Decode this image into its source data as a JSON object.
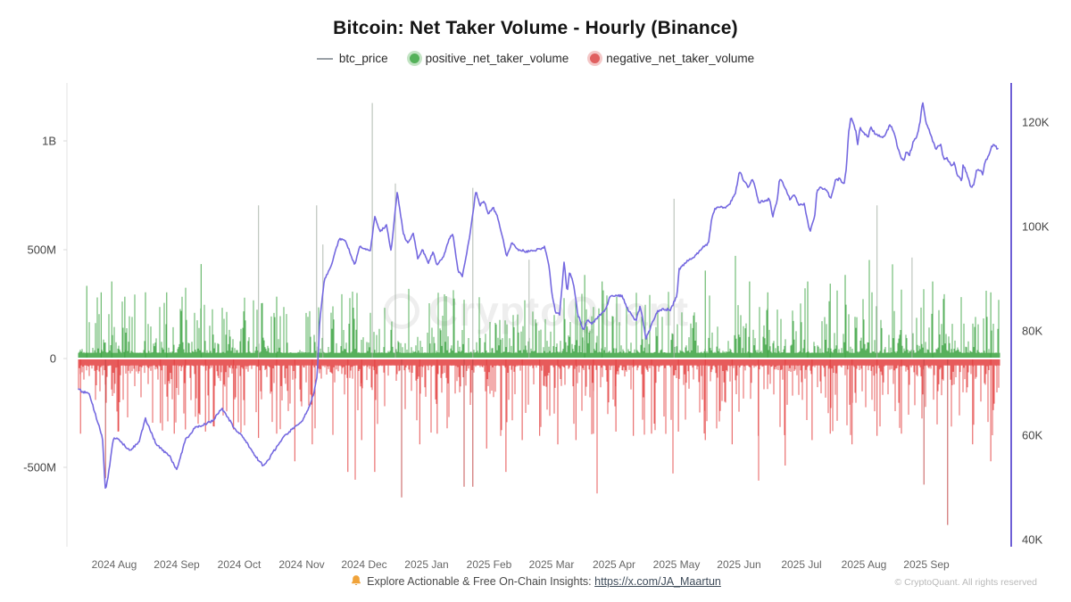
{
  "title": "Bitcoin: Net Taker Volume - Hourly (Binance)",
  "watermark": "CryptoQuant",
  "legend": [
    {
      "label": "btc_price",
      "marker": "line",
      "color": "#9aa0a6"
    },
    {
      "label": "positive_net_taker_volume",
      "marker": "dot",
      "color": "#55b25a",
      "ring": "rgba(85,178,90,0.35)"
    },
    {
      "label": "negative_net_taker_volume",
      "marker": "dot",
      "color": "#e06060",
      "ring": "rgba(224,96,96,0.35)"
    }
  ],
  "footer": {
    "text": "Explore Actionable & Free On-Chain Insights:",
    "link": "https://x.com/JA_Maartun",
    "copyright": "© CryptoQuant. All rights reserved"
  },
  "chart_data": {
    "type": "mixed",
    "title": "Bitcoin: Net Taker Volume - Hourly (Binance)",
    "x_unit": "months since 2024-08-01",
    "x_range": [
      -0.57,
      14.17
    ],
    "x_tick_labels": [
      "2024 Aug",
      "2024 Sep",
      "2024 Oct",
      "2024 Nov",
      "2024 Dec",
      "2025 Jan",
      "2025 Feb",
      "2025 Mar",
      "2025 Apr",
      "2025 May",
      "2025 Jun",
      "2025 Jul",
      "2025 Aug",
      "2025 Sep"
    ],
    "left_axis": {
      "title": "net taker volume (USD)",
      "tick_labels": [
        "1B",
        "500M",
        "0",
        "-500M"
      ],
      "tick_values_M": [
        1000,
        500,
        0,
        -500
      ],
      "range_M": [
        -900,
        1250
      ]
    },
    "right_axis": {
      "title": "btc price (USD)",
      "tick_labels": [
        "120K",
        "100K",
        "80K",
        "60K",
        "40K"
      ],
      "tick_values_K": [
        120,
        100,
        80,
        60,
        40
      ],
      "range_K": [
        40,
        128
      ]
    },
    "grid": false,
    "legend_position": "top",
    "series": [
      {
        "name": "btc_price",
        "type": "line",
        "axis": "right",
        "color": "#7569e0"
      },
      {
        "name": "positive_net_taker_volume",
        "type": "bar",
        "axis": "left",
        "color": "#3aa23f"
      },
      {
        "name": "negative_net_taker_volume",
        "type": "bar",
        "axis": "left",
        "color": "#e33e3e"
      }
    ],
    "colors": {
      "price": "#7569e0",
      "positive": "#3aa23f",
      "negative": "#e33e3e",
      "tall_spike": "#a9b3a9",
      "deep_spike": "#c04444",
      "left_axis_line": "#e3e3e3",
      "right_axis_line": "#6e5fd6"
    },
    "btc_price_series": [
      [
        -0.57,
        68.7
      ],
      [
        -0.4,
        67.9
      ],
      [
        -0.3,
        63.9
      ],
      [
        -0.19,
        59.7
      ],
      [
        -0.14,
        49.1
      ],
      [
        -0.09,
        52.8
      ],
      [
        -0.01,
        59.7
      ],
      [
        0.1,
        58.8
      ],
      [
        0.24,
        57.1
      ],
      [
        0.39,
        58.5
      ],
      [
        0.5,
        63.1
      ],
      [
        0.67,
        58.3
      ],
      [
        0.89,
        55.9
      ],
      [
        1.0,
        53.3
      ],
      [
        1.14,
        59.1
      ],
      [
        1.29,
        61.4
      ],
      [
        1.57,
        62.7
      ],
      [
        1.72,
        65.1
      ],
      [
        1.82,
        63.4
      ],
      [
        1.92,
        61.4
      ],
      [
        2.06,
        59.7
      ],
      [
        2.22,
        56.6
      ],
      [
        2.39,
        54.0
      ],
      [
        2.49,
        55.7
      ],
      [
        2.67,
        59.1
      ],
      [
        2.82,
        60.9
      ],
      [
        3.0,
        62.6
      ],
      [
        3.1,
        64.8
      ],
      [
        3.2,
        68.2
      ],
      [
        3.25,
        71.6
      ],
      [
        3.29,
        81.9
      ],
      [
        3.36,
        89.6
      ],
      [
        3.46,
        92.1
      ],
      [
        3.6,
        97.6
      ],
      [
        3.7,
        97.3
      ],
      [
        3.85,
        92.6
      ],
      [
        3.93,
        96.1
      ],
      [
        4.1,
        95.2
      ],
      [
        4.17,
        102.1
      ],
      [
        4.25,
        99.0
      ],
      [
        4.36,
        100.3
      ],
      [
        4.43,
        95.2
      ],
      [
        4.53,
        106.7
      ],
      [
        4.63,
        98.5
      ],
      [
        4.7,
        96.8
      ],
      [
        4.79,
        98.6
      ],
      [
        4.86,
        93.8
      ],
      [
        4.93,
        95.6
      ],
      [
        5.03,
        93.0
      ],
      [
        5.1,
        95.2
      ],
      [
        5.17,
        92.5
      ],
      [
        5.28,
        94.5
      ],
      [
        5.36,
        97.6
      ],
      [
        5.42,
        98.6
      ],
      [
        5.5,
        91.6
      ],
      [
        5.57,
        90.4
      ],
      [
        5.65,
        95.6
      ],
      [
        5.7,
        99.0
      ],
      [
        5.79,
        107.0
      ],
      [
        5.85,
        104.1
      ],
      [
        5.92,
        105.0
      ],
      [
        5.99,
        102.4
      ],
      [
        6.06,
        103.8
      ],
      [
        6.13,
        101.9
      ],
      [
        6.22,
        97.8
      ],
      [
        6.28,
        94.4
      ],
      [
        6.36,
        96.8
      ],
      [
        6.46,
        95.6
      ],
      [
        6.6,
        95.2
      ],
      [
        6.79,
        95.6
      ],
      [
        6.89,
        96.1
      ],
      [
        6.96,
        92.5
      ],
      [
        7.0,
        87.5
      ],
      [
        7.06,
        83.6
      ],
      [
        7.13,
        83.2
      ],
      [
        7.2,
        93.3
      ],
      [
        7.25,
        87.5
      ],
      [
        7.29,
        91.3
      ],
      [
        7.35,
        89.2
      ],
      [
        7.42,
        83.2
      ],
      [
        7.51,
        80.2
      ],
      [
        7.58,
        82.2
      ],
      [
        7.65,
        81.4
      ],
      [
        7.75,
        82.7
      ],
      [
        7.86,
        83.9
      ],
      [
        7.94,
        86.7
      ],
      [
        8.03,
        86.7
      ],
      [
        8.13,
        86.7
      ],
      [
        8.22,
        84.1
      ],
      [
        8.35,
        81.9
      ],
      [
        8.42,
        84.8
      ],
      [
        8.51,
        78.5
      ],
      [
        8.58,
        80.5
      ],
      [
        8.69,
        83.8
      ],
      [
        8.79,
        84.1
      ],
      [
        8.91,
        84.1
      ],
      [
        9.01,
        87.0
      ],
      [
        9.04,
        91.8
      ],
      [
        9.11,
        92.6
      ],
      [
        9.18,
        93.5
      ],
      [
        9.29,
        94.2
      ],
      [
        9.42,
        96.1
      ],
      [
        9.51,
        96.8
      ],
      [
        9.56,
        101.2
      ],
      [
        9.61,
        103.3
      ],
      [
        9.71,
        103.8
      ],
      [
        9.79,
        103.6
      ],
      [
        9.86,
        104.5
      ],
      [
        9.94,
        106.3
      ],
      [
        10.01,
        110.6
      ],
      [
        10.08,
        108.7
      ],
      [
        10.15,
        107.5
      ],
      [
        10.22,
        109.2
      ],
      [
        10.32,
        104.6
      ],
      [
        10.42,
        105.0
      ],
      [
        10.49,
        105.3
      ],
      [
        10.54,
        101.9
      ],
      [
        10.61,
        105.0
      ],
      [
        10.65,
        109.2
      ],
      [
        10.72,
        108.0
      ],
      [
        10.82,
        105.0
      ],
      [
        10.89,
        106.2
      ],
      [
        10.96,
        104.1
      ],
      [
        11.04,
        104.4
      ],
      [
        11.11,
        100.3
      ],
      [
        11.14,
        99.0
      ],
      [
        11.21,
        101.9
      ],
      [
        11.25,
        107.0
      ],
      [
        11.32,
        107.5
      ],
      [
        11.39,
        107.0
      ],
      [
        11.47,
        105.5
      ],
      [
        11.54,
        108.7
      ],
      [
        11.61,
        109.2
      ],
      [
        11.68,
        108.0
      ],
      [
        11.72,
        111.4
      ],
      [
        11.75,
        117.4
      ],
      [
        11.79,
        121.2
      ],
      [
        11.87,
        118.3
      ],
      [
        11.9,
        115.7
      ],
      [
        11.94,
        119.0
      ],
      [
        12.0,
        117.8
      ],
      [
        12.07,
        117.3
      ],
      [
        12.11,
        119.0
      ],
      [
        12.18,
        117.8
      ],
      [
        12.3,
        116.9
      ],
      [
        12.35,
        117.8
      ],
      [
        12.42,
        119.5
      ],
      [
        12.47,
        118.3
      ],
      [
        12.51,
        116.6
      ],
      [
        12.58,
        113.5
      ],
      [
        12.64,
        112.6
      ],
      [
        12.68,
        114.4
      ],
      [
        12.73,
        113.8
      ],
      [
        12.8,
        116.6
      ],
      [
        12.85,
        117.3
      ],
      [
        12.9,
        120.3
      ],
      [
        12.94,
        124.1
      ],
      [
        13.0,
        119.5
      ],
      [
        13.04,
        118.6
      ],
      [
        13.11,
        116.1
      ],
      [
        13.15,
        114.9
      ],
      [
        13.23,
        115.7
      ],
      [
        13.28,
        112.6
      ],
      [
        13.33,
        113.2
      ],
      [
        13.4,
        111.5
      ],
      [
        13.44,
        112.3
      ],
      [
        13.5,
        109.7
      ],
      [
        13.57,
        108.7
      ],
      [
        13.58,
        112.1
      ],
      [
        13.64,
        110.4
      ],
      [
        13.71,
        107.5
      ],
      [
        13.76,
        108.0
      ],
      [
        13.8,
        110.6
      ],
      [
        13.86,
        110.9
      ],
      [
        13.9,
        110.1
      ],
      [
        13.94,
        112.6
      ],
      [
        14.0,
        113.5
      ],
      [
        14.04,
        115.2
      ],
      [
        14.08,
        115.7
      ],
      [
        14.14,
        114.9
      ]
    ],
    "positive_spikes_M": [
      [
        -0.44,
        330
      ],
      [
        -0.21,
        300
      ],
      [
        -0.04,
        350
      ],
      [
        0.17,
        280
      ],
      [
        0.5,
        300
      ],
      [
        0.84,
        300
      ],
      [
        1.39,
        430
      ],
      [
        2.31,
        700
      ],
      [
        2.6,
        280
      ],
      [
        3.24,
        700
      ],
      [
        3.34,
        520
      ],
      [
        4.13,
        1170
      ],
      [
        4.5,
        800
      ],
      [
        5.74,
        780
      ],
      [
        6.64,
        450
      ],
      [
        7.53,
        380
      ],
      [
        7.81,
        350
      ],
      [
        8.96,
        730
      ],
      [
        9.46,
        400
      ],
      [
        10.17,
        350
      ],
      [
        10.46,
        300
      ],
      [
        11.1,
        350
      ],
      [
        11.46,
        340
      ],
      [
        11.7,
        380
      ],
      [
        12.21,
        700
      ],
      [
        12.77,
        460
      ],
      [
        13.1,
        350
      ],
      [
        14.03,
        300
      ]
    ],
    "negative_spikes_M": [
      [
        -0.54,
        350
      ],
      [
        -0.14,
        560
      ],
      [
        0.06,
        340
      ],
      [
        0.74,
        300
      ],
      [
        0.96,
        350
      ],
      [
        1.14,
        330
      ],
      [
        1.46,
        340
      ],
      [
        1.91,
        330
      ],
      [
        2.31,
        370
      ],
      [
        2.6,
        350
      ],
      [
        2.89,
        480
      ],
      [
        3.17,
        400
      ],
      [
        3.74,
        530
      ],
      [
        3.96,
        380
      ],
      [
        4.17,
        530
      ],
      [
        4.6,
        650
      ],
      [
        4.89,
        400
      ],
      [
        5.17,
        350
      ],
      [
        5.6,
        600
      ],
      [
        5.74,
        600
      ],
      [
        5.96,
        420
      ],
      [
        6.27,
        530
      ],
      [
        6.53,
        380
      ],
      [
        6.81,
        360
      ],
      [
        7.1,
        400
      ],
      [
        7.39,
        380
      ],
      [
        7.67,
        350
      ],
      [
        8.03,
        340
      ],
      [
        8.31,
        360
      ],
      [
        8.6,
        350
      ],
      [
        9.03,
        340
      ],
      [
        9.46,
        380
      ],
      [
        9.89,
        400
      ],
      [
        10.31,
        360
      ],
      [
        10.74,
        500
      ],
      [
        11.17,
        380
      ],
      [
        11.46,
        350
      ],
      [
        11.81,
        400
      ],
      [
        12.21,
        360
      ],
      [
        12.6,
        350
      ],
      [
        12.96,
        590
      ],
      [
        13.34,
        780
      ],
      [
        13.74,
        400
      ],
      [
        14.03,
        480
      ]
    ],
    "volume_noise": {
      "seed": 1337,
      "power": 5,
      "green_base": 22,
      "green_scale": 300,
      "red_base": 28,
      "red_scale": 330,
      "green_burst_prob": 0.02,
      "red_burst_prob": 0.03,
      "burst_mult": 1.8,
      "price_jitter": 2.6
    }
  }
}
